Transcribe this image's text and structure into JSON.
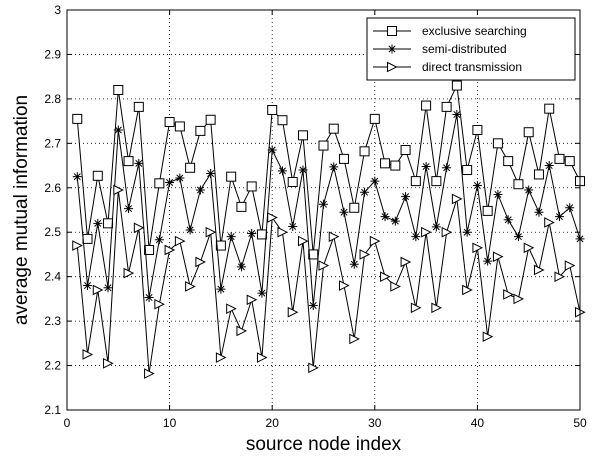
{
  "chart_data": {
    "type": "line",
    "xlabel": "source node index",
    "ylabel": "average mutual information",
    "xlim": [
      0,
      50
    ],
    "ylim": [
      2.1,
      3.0
    ],
    "xticks": [
      0,
      10,
      20,
      30,
      40,
      50
    ],
    "yticks": [
      2.1,
      2.2,
      2.3,
      2.4,
      2.5,
      2.6,
      2.7,
      2.8,
      2.9,
      3.0
    ],
    "ytick_labels": [
      "2.1",
      "2.2",
      "2.3",
      "2.4",
      "2.5",
      "2.6",
      "2.7",
      "2.8",
      "2.9",
      "3"
    ],
    "grid": true,
    "legend_position": "top-right",
    "x": [
      1,
      2,
      3,
      4,
      5,
      6,
      7,
      8,
      9,
      10,
      11,
      12,
      13,
      14,
      15,
      16,
      17,
      18,
      19,
      20,
      21,
      22,
      23,
      24,
      25,
      26,
      27,
      28,
      29,
      30,
      31,
      32,
      33,
      34,
      35,
      36,
      37,
      38,
      39,
      40,
      41,
      42,
      43,
      44,
      45,
      46,
      47,
      48,
      49,
      50
    ],
    "series": [
      {
        "name": "exclusive searching",
        "marker": "square",
        "values": [
          2.755,
          2.485,
          2.627,
          2.52,
          2.82,
          2.66,
          2.782,
          2.46,
          2.61,
          2.748,
          2.738,
          2.645,
          2.728,
          2.753,
          2.47,
          2.625,
          2.557,
          2.603,
          2.495,
          2.775,
          2.752,
          2.613,
          2.718,
          2.45,
          2.695,
          2.733,
          2.665,
          2.555,
          2.682,
          2.755,
          2.655,
          2.65,
          2.685,
          2.615,
          2.785,
          2.615,
          2.782,
          2.83,
          2.64,
          2.73,
          2.548,
          2.7,
          2.66,
          2.608,
          2.725,
          2.63,
          2.778,
          2.665,
          2.66,
          2.615
        ]
      },
      {
        "name": "semi-distributed",
        "marker": "star",
        "values": [
          2.625,
          2.38,
          2.52,
          2.375,
          2.73,
          2.553,
          2.655,
          2.353,
          2.483,
          2.612,
          2.622,
          2.505,
          2.595,
          2.632,
          2.372,
          2.49,
          2.422,
          2.497,
          2.363,
          2.685,
          2.638,
          2.513,
          2.64,
          2.335,
          2.563,
          2.647,
          2.545,
          2.428,
          2.59,
          2.615,
          2.535,
          2.525,
          2.58,
          2.49,
          2.648,
          2.512,
          2.645,
          2.765,
          2.5,
          2.605,
          2.435,
          2.585,
          2.528,
          2.49,
          2.595,
          2.545,
          2.65,
          2.535,
          2.555,
          2.485
        ]
      },
      {
        "name": "direct transmission",
        "marker": "triangle-right",
        "values": [
          2.47,
          2.225,
          2.37,
          2.205,
          2.595,
          2.408,
          2.51,
          2.182,
          2.338,
          2.46,
          2.48,
          2.378,
          2.433,
          2.5,
          2.218,
          2.328,
          2.278,
          2.348,
          2.218,
          2.533,
          2.5,
          2.32,
          2.48,
          2.195,
          2.425,
          2.49,
          2.38,
          2.26,
          2.45,
          2.48,
          2.4,
          2.378,
          2.433,
          2.33,
          2.5,
          2.33,
          2.5,
          2.575,
          2.37,
          2.465,
          2.265,
          2.445,
          2.36,
          2.35,
          2.465,
          2.415,
          2.522,
          2.4,
          2.425,
          2.32
        ]
      }
    ]
  }
}
